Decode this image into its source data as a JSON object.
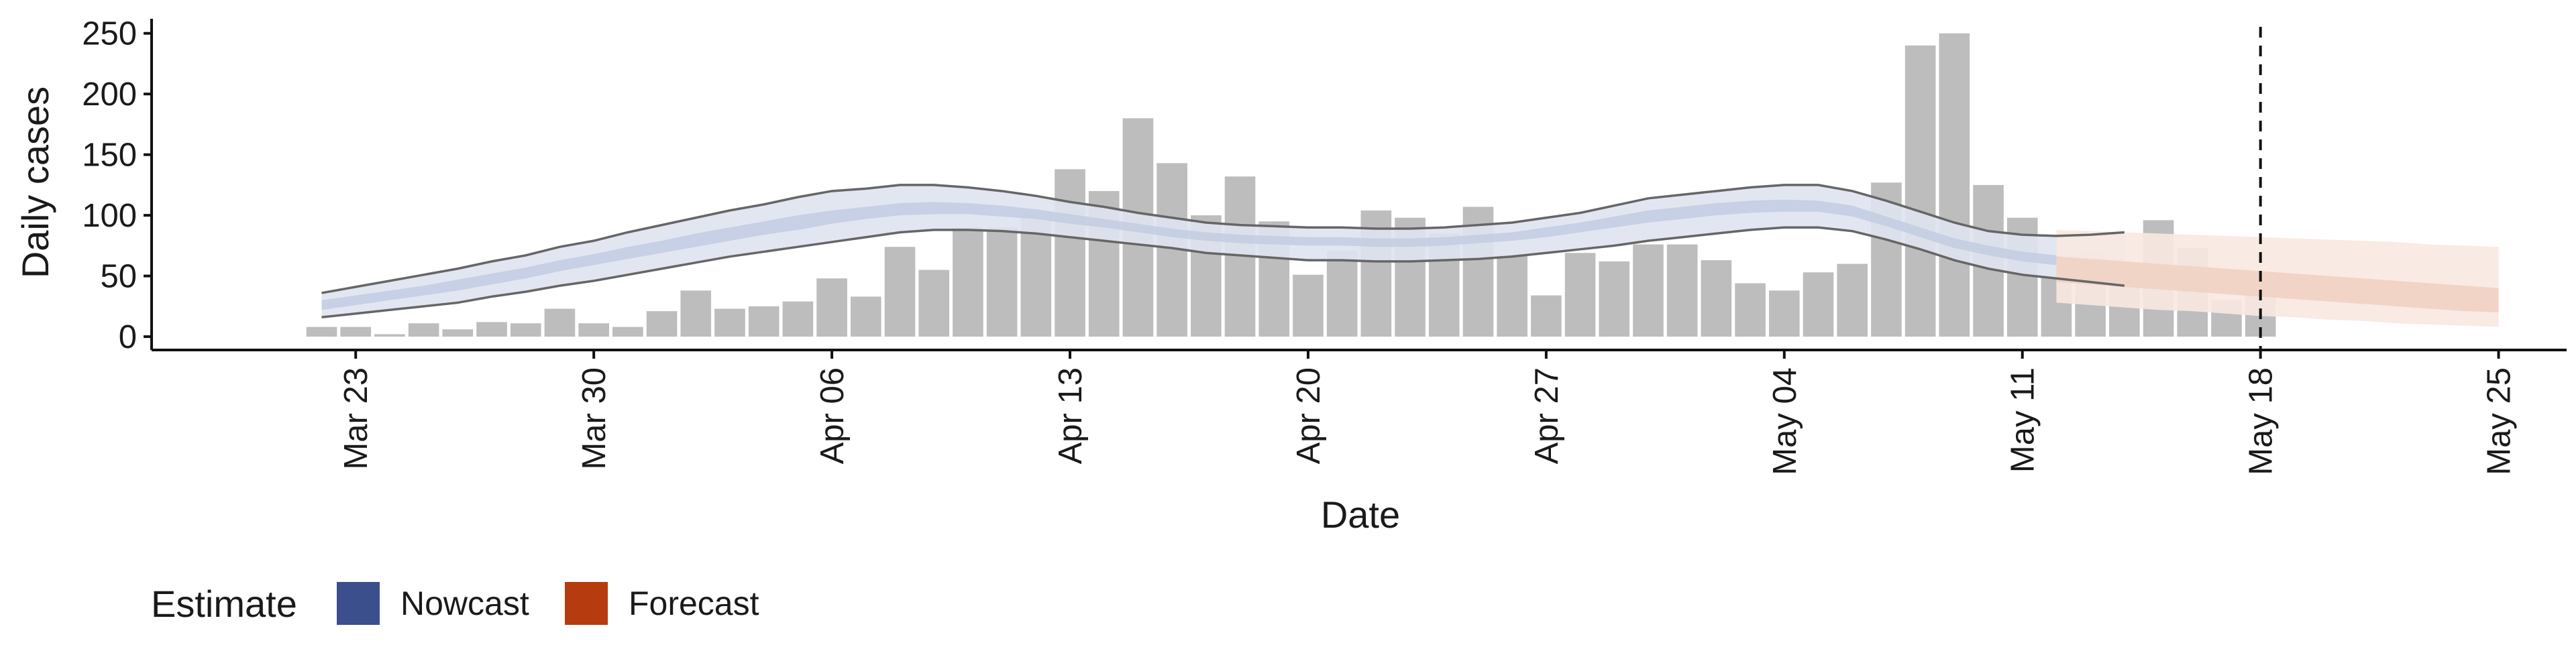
{
  "chart_data": {
    "type": "bar",
    "title": "",
    "xlabel": "Date",
    "ylabel": "Daily cases",
    "ylim": [
      -11,
      262
    ],
    "yticks": [
      0,
      50,
      100,
      150,
      200,
      250
    ],
    "xlim": [
      "2020-03-17",
      "2020-05-27"
    ],
    "xticks": [
      {
        "date": "2020-03-23",
        "label": "Mar 23"
      },
      {
        "date": "2020-03-30",
        "label": "Mar 30"
      },
      {
        "date": "2020-04-06",
        "label": "Apr 06"
      },
      {
        "date": "2020-04-13",
        "label": "Apr 13"
      },
      {
        "date": "2020-04-20",
        "label": "Apr 20"
      },
      {
        "date": "2020-04-27",
        "label": "Apr 27"
      },
      {
        "date": "2020-05-04",
        "label": "May 04"
      },
      {
        "date": "2020-05-11",
        "label": "May 11"
      },
      {
        "date": "2020-05-18",
        "label": "May 18"
      },
      {
        "date": "2020-05-25",
        "label": "May 25"
      }
    ],
    "grid": false,
    "vline_date": "2020-05-18",
    "legend": {
      "title": "Estimate",
      "position": "bottom-left",
      "entries": [
        {
          "name": "Nowcast",
          "color": "#3b4f8c"
        },
        {
          "name": "Forecast",
          "color": "#b63c10"
        }
      ]
    },
    "colors": {
      "bars": "#bdbdbd",
      "nowcast_outer": "#dfe3ef",
      "nowcast_inner": "#c4cde2",
      "forecast_outer": "#f8e8e0",
      "forecast_inner": "#f0d1c2",
      "interval_lines": "#666666"
    },
    "cases": {
      "start_date": "2020-03-22",
      "values": [
        8,
        8,
        2,
        11,
        6,
        12,
        11,
        23,
        11,
        8,
        21,
        38,
        23,
        25,
        29,
        48,
        33,
        74,
        55,
        90,
        90,
        102,
        138,
        120,
        180,
        143,
        100,
        132,
        95,
        51,
        71,
        104,
        98,
        85,
        107,
        67,
        34,
        69,
        62,
        76,
        76,
        63,
        44,
        38,
        53,
        60,
        127,
        240,
        250,
        125,
        98,
        49,
        70,
        61,
        96,
        73,
        30,
        41
      ]
    },
    "nowcast": {
      "start_date": "2020-03-22",
      "outer_lower": [
        16,
        19,
        22,
        25,
        28,
        33,
        37,
        42,
        46,
        51,
        56,
        61,
        66,
        70,
        74,
        78,
        82,
        86,
        88,
        88,
        87,
        85,
        82,
        79,
        76,
        73,
        69,
        67,
        65,
        63,
        63,
        62,
        62,
        63,
        64,
        66,
        69,
        72,
        75,
        79,
        82,
        85,
        88,
        90,
        90,
        87,
        80,
        72,
        63,
        56,
        51,
        48,
        45,
        42
      ],
      "inner_lower": [
        22,
        26,
        30,
        34,
        38,
        43,
        48,
        54,
        59,
        64,
        69,
        74,
        79,
        84,
        88,
        93,
        97,
        100,
        101,
        101,
        99,
        97,
        93,
        90,
        86,
        82,
        79,
        77,
        76,
        75,
        75,
        74,
        74,
        75,
        77,
        79,
        82,
        86,
        90,
        94,
        97,
        100,
        102,
        103,
        103,
        99,
        91,
        82,
        73,
        67,
        62,
        59,
        57,
        56
      ],
      "inner_upper": [
        30,
        34,
        38,
        42,
        47,
        52,
        57,
        63,
        68,
        74,
        79,
        85,
        90,
        95,
        100,
        104,
        107,
        110,
        111,
        110,
        108,
        105,
        101,
        97,
        93,
        89,
        86,
        84,
        83,
        82,
        82,
        81,
        81,
        82,
        84,
        86,
        90,
        94,
        99,
        104,
        107,
        110,
        112,
        113,
        112,
        108,
        99,
        90,
        81,
        75,
        70,
        67,
        65,
        64
      ],
      "outer_upper": [
        36,
        41,
        46,
        51,
        56,
        62,
        67,
        74,
        79,
        86,
        92,
        98,
        104,
        109,
        115,
        120,
        122,
        125,
        125,
        123,
        120,
        116,
        111,
        107,
        102,
        98,
        94,
        92,
        91,
        90,
        90,
        89,
        89,
        90,
        92,
        94,
        98,
        102,
        108,
        114,
        117,
        120,
        123,
        125,
        125,
        120,
        112,
        103,
        94,
        87,
        84,
        83,
        84,
        86
      ]
    },
    "forecast": {
      "start_date": "2020-05-12",
      "outer_lower": [
        28,
        26,
        24,
        22,
        21,
        19,
        17,
        16,
        14,
        13,
        11,
        10,
        9,
        8
      ],
      "inner_lower": [
        45,
        43,
        41,
        39,
        37,
        35,
        33,
        31,
        29,
        27,
        25,
        23,
        21,
        20
      ],
      "inner_upper": [
        66,
        64,
        62,
        60,
        58,
        56,
        54,
        52,
        50,
        48,
        46,
        44,
        42,
        40
      ],
      "outer_upper": [
        88,
        87,
        86,
        85,
        84,
        83,
        82,
        81,
        80,
        79,
        78,
        76,
        75,
        74
      ]
    }
  }
}
